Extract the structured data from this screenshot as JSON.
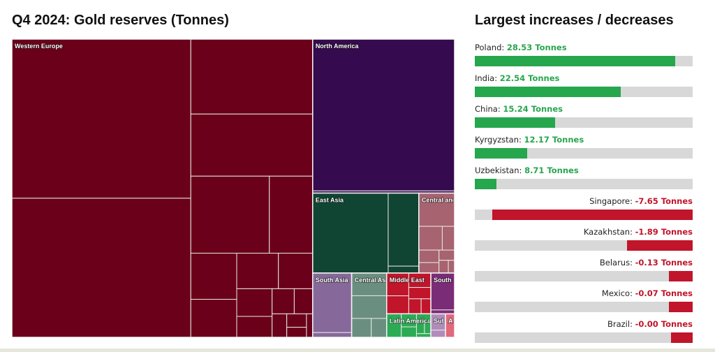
{
  "treemap": {
    "title": "Q4 2024: Gold reserves (Tonnes)"
  },
  "changes": {
    "title": "Largest increases / decreases",
    "unit": "Tonnes",
    "positive_color": "#26a64d",
    "negative_color": "#c0152a",
    "track_color": "#d8d8d8"
  },
  "chart_data": [
    {
      "type": "treemap",
      "title": "Q4 2024: Gold reserves (Tonnes)",
      "regions": [
        {
          "name": "Western Europe",
          "color": "#6a0019",
          "label_color": "#ffffff",
          "tiles": [
            10755,
            9400,
            3450,
            2860,
            2285,
            1260,
            800,
            660,
            560,
            460,
            370,
            280,
            210,
            175,
            130,
            100,
            75,
            55
          ]
        },
        {
          "name": "North America",
          "color": "#360a4e",
          "label_color": "#ffffff",
          "tiles": [
            8133,
            120
          ]
        },
        {
          "name": "East Asia",
          "color": "#0f4532",
          "label_color": "#ffffff",
          "tiles": [
            2280,
            846,
            80
          ]
        },
        {
          "name": "South Asia",
          "color": "#86699a",
          "label_color": "#ffffff",
          "tiles": [
            876,
            70
          ]
        },
        {
          "name": "Central and Eastern Europe",
          "color": "#a7636f",
          "label_color": "#ffffff",
          "tiles": [
            448,
            210,
            110,
            95,
            80,
            60,
            45,
            30
          ]
        },
        {
          "name": "Central Asia",
          "color": "#6a8f80",
          "label_color": "#ffffff",
          "tiles": [
            300,
            300,
            140,
            110
          ]
        },
        {
          "name": "Middle East",
          "color": "#c0152a",
          "label_color": "#ffffff",
          "tiles": [
            190,
            150,
            120,
            95,
            70,
            55
          ]
        },
        {
          "name": "South East Asia",
          "color": "#7b2c76",
          "label_color": "#ffffff",
          "tiles": [
            330,
            35
          ]
        },
        {
          "name": "Latin America & C...",
          "color": "#2cab55",
          "label_color": "#ffffff",
          "tiles": [
            130,
            75,
            60,
            45,
            35,
            28,
            20
          ]
        },
        {
          "name": "Sub-Sa...",
          "color": "#b18cba",
          "label_color": "#ffffff",
          "tiles": [
            90,
            40
          ]
        },
        {
          "name": "A...",
          "color": "#e0697b",
          "label_color": "#ffffff",
          "tiles": [
            80
          ]
        }
      ]
    },
    {
      "type": "bar",
      "title": "Largest increases / decreases",
      "unit": "Tonnes",
      "categories": [
        "Poland",
        "India",
        "China",
        "Kyrgyzstan",
        "Uzbekistan",
        "Singapore",
        "Kazakhstan",
        "Belarus",
        "Mexico",
        "Brazil"
      ],
      "values": [
        28.53,
        22.54,
        15.24,
        12.17,
        8.71,
        -7.65,
        -1.89,
        -0.13,
        -0.07,
        -0.0
      ],
      "display_values": [
        "28.53",
        "22.54",
        "15.24",
        "12.17",
        "8.71",
        "-7.65",
        "-1.89",
        "-0.13",
        "-0.07",
        "-0.00"
      ],
      "bar_fill_fraction": [
        0.92,
        0.67,
        0.37,
        0.24,
        0.1,
        0.92,
        0.3,
        0.11,
        0.11,
        0.1
      ]
    }
  ]
}
